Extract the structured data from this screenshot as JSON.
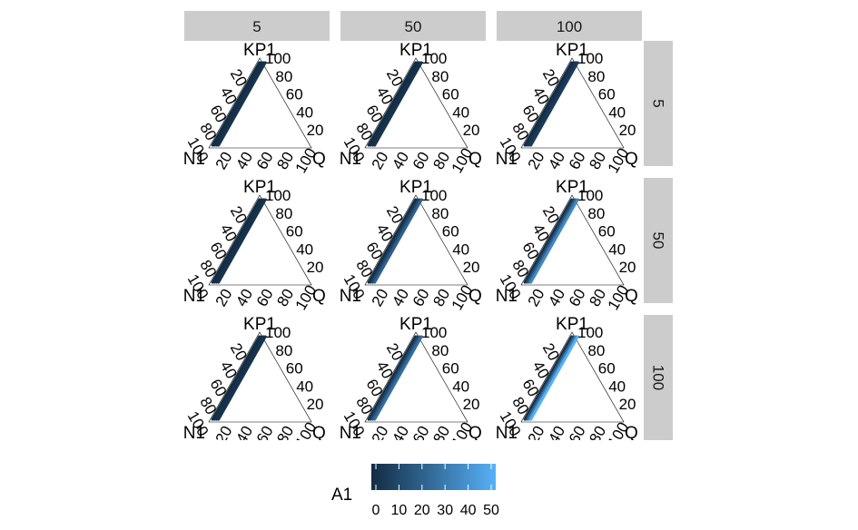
{
  "chart_data": {
    "type": "ternary",
    "facet_columns": [
      "5",
      "50",
      "100"
    ],
    "facet_rows": [
      "5",
      "50",
      "100"
    ],
    "axis_labels": {
      "top": "KP1",
      "left": "N1",
      "right": "Q"
    },
    "ticks": [
      "20",
      "40",
      "60",
      "80",
      "100"
    ],
    "left_ticks": [
      "20",
      "40",
      "60",
      "80",
      "100"
    ],
    "bottom_ticks": [
      "20",
      "40",
      "60",
      "80",
      "100"
    ],
    "right_ticks": [
      "20",
      "40",
      "60",
      "80",
      "100"
    ],
    "fill_variable": "A1",
    "legend": {
      "title": "A1",
      "labels": [
        "0",
        "10",
        "20",
        "30",
        "40",
        "50"
      ],
      "range": [
        0,
        50
      ],
      "low_color": "#132B43",
      "high_color": "#56B1F7"
    },
    "panels": [
      {
        "row": "5",
        "col": "5",
        "a1_values": [
          0,
          1,
          2,
          3
        ]
      },
      {
        "row": "5",
        "col": "50",
        "a1_values": [
          0,
          1,
          2,
          3
        ]
      },
      {
        "row": "5",
        "col": "100",
        "a1_values": [
          0,
          2,
          4,
          6
        ]
      },
      {
        "row": "50",
        "col": "5",
        "a1_values": [
          0,
          1,
          2,
          3
        ]
      },
      {
        "row": "50",
        "col": "50",
        "a1_values": [
          0,
          5,
          12,
          20
        ]
      },
      {
        "row": "50",
        "col": "100",
        "a1_values": [
          0,
          10,
          22,
          35
        ]
      },
      {
        "row": "100",
        "col": "5",
        "a1_values": [
          0,
          1,
          2,
          3
        ]
      },
      {
        "row": "100",
        "col": "50",
        "a1_values": [
          0,
          8,
          16,
          25
        ]
      },
      {
        "row": "100",
        "col": "100",
        "a1_values": [
          0,
          15,
          32,
          50
        ]
      }
    ]
  }
}
